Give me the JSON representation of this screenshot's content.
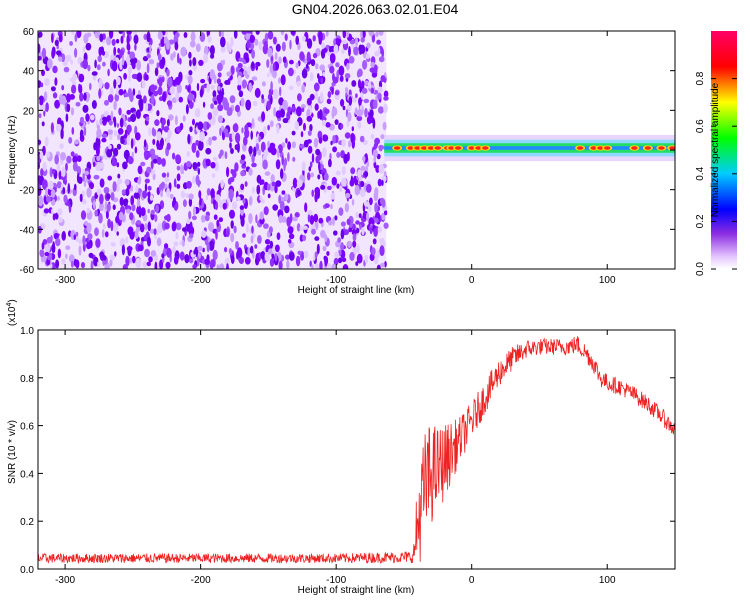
{
  "chart_data": [
    {
      "type": "heatmap",
      "title": "GN04.2026.063.02.01.E04",
      "xlabel": "Height of straight line (km)",
      "ylabel": "Frequency (Hz)",
      "xlim": [
        -320,
        150
      ],
      "ylim": [
        -60,
        60
      ],
      "xticks": [
        -300,
        -200,
        -100,
        0,
        100
      ],
      "yticks": [
        -60,
        -40,
        -20,
        0,
        20,
        40,
        60
      ],
      "noise_region_x": [
        -320,
        -63
      ],
      "band_center_hz": 1,
      "band_half_width_hz": 3,
      "hotspots_x": [
        -55,
        -45,
        -40,
        -35,
        -30,
        -25,
        -18,
        -15,
        -10,
        0,
        5,
        10,
        80,
        90,
        95,
        100,
        120,
        130,
        140,
        148
      ],
      "colorbar": {
        "label": "Normalized spectral amplitude",
        "range": [
          0,
          1
        ],
        "ticks": [
          0.0,
          0.2,
          0.4,
          0.6,
          0.8
        ],
        "tick_labels": [
          "0.0",
          "0.2",
          "0.4",
          "0.6",
          "0.8"
        ],
        "colors": [
          "#ffffff",
          "#7700ff",
          "#0000ff",
          "#00ffff",
          "#00ff00",
          "#ffff00",
          "#ff0000",
          "#ff0066"
        ]
      }
    },
    {
      "type": "line",
      "xlabel": "Height of straight line (km)",
      "ylabel": "SNR (10 * v/v)",
      "scale_label_base": "(x10",
      "scale_label_exp": "4",
      "scale_label_close": ")",
      "xlim": [
        -320,
        150
      ],
      "ylim": [
        0,
        1.0
      ],
      "xticks": [
        -300,
        -200,
        -100,
        0,
        100
      ],
      "yticks": [
        0.0,
        0.2,
        0.4,
        0.6,
        0.8,
        1.0
      ],
      "ytick_labels": [
        "0.0",
        "0.2",
        "0.4",
        "0.6",
        "0.8",
        "1.0"
      ],
      "line_color": "#ee2222",
      "envelope": {
        "x": [
          -320,
          -100,
          -43,
          -42,
          -38,
          -34,
          -30,
          -25,
          -20,
          -10,
          0,
          10,
          20,
          30,
          40,
          50,
          60,
          70,
          78,
          85,
          90,
          95,
          100,
          110,
          120,
          130,
          140,
          150
        ],
        "mean": [
          0.045,
          0.045,
          0.05,
          0.1,
          0.25,
          0.35,
          0.4,
          0.42,
          0.45,
          0.53,
          0.62,
          0.72,
          0.82,
          0.88,
          0.92,
          0.93,
          0.93,
          0.93,
          0.94,
          0.9,
          0.86,
          0.8,
          0.78,
          0.76,
          0.73,
          0.69,
          0.64,
          0.58
        ],
        "spread": [
          0.02,
          0.02,
          0.025,
          0.12,
          0.22,
          0.24,
          0.22,
          0.18,
          0.16,
          0.1,
          0.08,
          0.07,
          0.06,
          0.05,
          0.04,
          0.035,
          0.035,
          0.035,
          0.04,
          0.04,
          0.04,
          0.04,
          0.035,
          0.035,
          0.035,
          0.035,
          0.035,
          0.035
        ]
      }
    }
  ]
}
